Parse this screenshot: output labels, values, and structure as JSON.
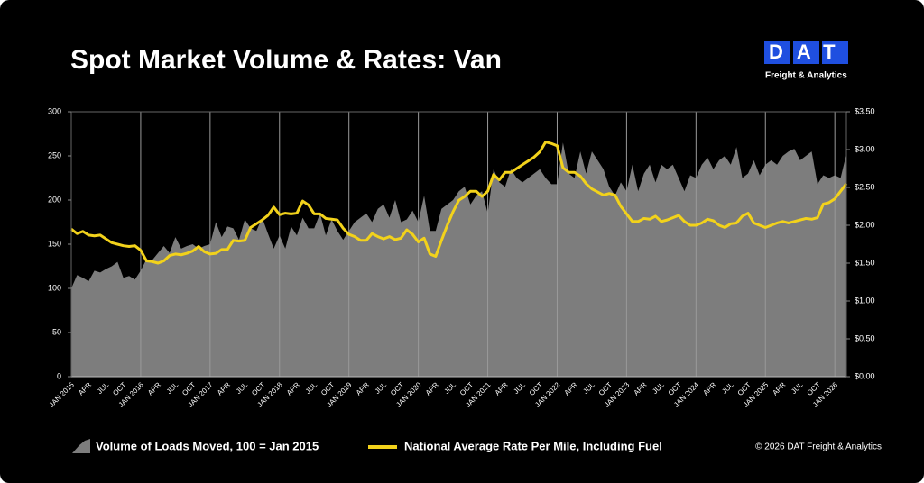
{
  "brand": {
    "logo": "DAT",
    "tagline": "Freight & Analytics"
  },
  "copyright": "© 2026 DAT Freight & Analytics",
  "chart_data": {
    "type": "line",
    "title": "Spot Market Volume & Rates: Van",
    "categories": [
      "JAN 2015",
      null,
      null,
      "APR",
      null,
      null,
      "JUL",
      null,
      null,
      "OCT",
      null,
      null,
      "JAN 2016",
      null,
      null,
      "APR",
      null,
      null,
      "JUL",
      null,
      null,
      "OCT",
      null,
      null,
      "JAN 2017",
      null,
      null,
      "APR",
      null,
      null,
      "JUL",
      null,
      null,
      "OCT",
      null,
      null,
      "JAN 2018",
      null,
      null,
      "APR",
      null,
      null,
      "JUL",
      null,
      null,
      "OCT",
      null,
      null,
      "JAN 2019",
      null,
      null,
      "APR",
      null,
      null,
      "JUL",
      null,
      null,
      "OCT",
      null,
      null,
      "JAN 2020",
      null,
      null,
      "APR",
      null,
      null,
      "JUL",
      null,
      null,
      "OCT",
      null,
      null,
      "JAN 2021",
      null,
      null,
      "APR",
      null,
      null,
      "JUL",
      null,
      null,
      "OCT",
      null,
      null,
      "JAN 2022",
      null,
      null,
      "APR",
      null,
      null,
      "JUL",
      null,
      null,
      "OCT",
      null,
      null,
      "JAN 2023",
      null,
      null,
      "APR",
      null,
      null,
      "JUL",
      null,
      null,
      "OCT",
      null,
      null,
      "JAN 2024",
      null,
      null,
      "APR",
      null,
      null,
      "JUL",
      null,
      null,
      "OCT",
      null,
      null,
      "JAN 2025",
      null,
      null,
      "APR",
      null,
      null,
      "JUL",
      null,
      null,
      "OCT",
      null,
      null,
      "JAN 2026",
      null,
      null
    ],
    "series": [
      {
        "name": "Volume of Loads Moved, 100 = Jan 2015",
        "type": "area",
        "color": "#7d7d7d",
        "axis": "y",
        "values": [
          100,
          115,
          112,
          108,
          120,
          118,
          122,
          125,
          130,
          112,
          114,
          110,
          120,
          133,
          132,
          140,
          148,
          140,
          158,
          145,
          148,
          150,
          145,
          148,
          150,
          175,
          158,
          170,
          168,
          155,
          178,
          168,
          165,
          180,
          162,
          145,
          160,
          145,
          170,
          160,
          180,
          168,
          168,
          185,
          160,
          178,
          165,
          155,
          165,
          175,
          180,
          185,
          175,
          190,
          195,
          180,
          200,
          175,
          178,
          188,
          175,
          205,
          165,
          165,
          190,
          195,
          200,
          210,
          215,
          195,
          205,
          210,
          185,
          235,
          220,
          215,
          235,
          225,
          220,
          225,
          230,
          235,
          225,
          218,
          218,
          265,
          230,
          225,
          255,
          230,
          255,
          245,
          235,
          215,
          205,
          220,
          210,
          240,
          210,
          230,
          240,
          220,
          240,
          235,
          240,
          225,
          210,
          228,
          225,
          240,
          248,
          235,
          245,
          250,
          240,
          260,
          225,
          230,
          245,
          228,
          240,
          245,
          240,
          250,
          255,
          258,
          245,
          250,
          255,
          218,
          228,
          225,
          228,
          225,
          252
        ]
      },
      {
        "name": "National Average Rate Per Mile, Including Fuel",
        "type": "line",
        "color": "#f2d21b",
        "axis": "y2",
        "values": [
          1.95,
          1.89,
          1.92,
          1.87,
          1.86,
          1.87,
          1.82,
          1.77,
          1.75,
          1.73,
          1.72,
          1.73,
          1.67,
          1.53,
          1.52,
          1.5,
          1.53,
          1.6,
          1.62,
          1.61,
          1.63,
          1.66,
          1.72,
          1.65,
          1.62,
          1.63,
          1.68,
          1.68,
          1.8,
          1.79,
          1.8,
          1.97,
          2.02,
          2.07,
          2.13,
          2.24,
          2.14,
          2.16,
          2.15,
          2.16,
          2.32,
          2.27,
          2.15,
          2.15,
          2.09,
          2.08,
          2.07,
          1.96,
          1.88,
          1.85,
          1.8,
          1.8,
          1.89,
          1.85,
          1.82,
          1.85,
          1.81,
          1.83,
          1.94,
          1.88,
          1.78,
          1.83,
          1.62,
          1.59,
          1.8,
          2.0,
          2.18,
          2.33,
          2.38,
          2.45,
          2.45,
          2.38,
          2.45,
          2.67,
          2.6,
          2.7,
          2.7,
          2.75,
          2.8,
          2.85,
          2.9,
          2.97,
          3.1,
          3.08,
          3.05,
          2.76,
          2.7,
          2.7,
          2.65,
          2.55,
          2.48,
          2.44,
          2.4,
          2.42,
          2.4,
          2.25,
          2.15,
          2.05,
          2.05,
          2.09,
          2.08,
          2.12,
          2.05,
          2.07,
          2.1,
          2.13,
          2.05,
          2.0,
          2.0,
          2.03,
          2.08,
          2.06,
          2.0,
          1.97,
          2.02,
          2.03,
          2.12,
          2.16,
          2.03,
          2.0,
          1.97,
          2.0,
          2.03,
          2.05,
          2.03,
          2.05,
          2.07,
          2.09,
          2.08,
          2.1,
          2.28,
          2.3,
          2.35,
          2.45,
          2.55
        ]
      }
    ],
    "ylim": [
      0,
      300
    ],
    "yticks": [
      0,
      50,
      100,
      150,
      200,
      250,
      300
    ],
    "y2lim": [
      0,
      3.5
    ],
    "y2ticks": [
      {
        "value": 0,
        "label": "$0.00"
      },
      {
        "value": 0.5,
        "label": "$0.50"
      },
      {
        "value": 1,
        "label": "$1.00"
      },
      {
        "value": 1.5,
        "label": "$1.50"
      },
      {
        "value": 2,
        "label": "$2.00"
      },
      {
        "value": 2.5,
        "label": "$2.50"
      },
      {
        "value": 3,
        "label": "$3.00"
      },
      {
        "value": 3.5,
        "label": "$3.50"
      }
    ],
    "grid": true
  }
}
